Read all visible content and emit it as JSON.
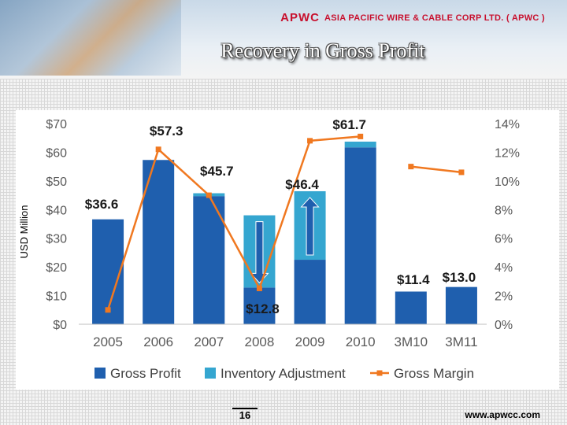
{
  "logo": {
    "mark": "APWC",
    "text": "ASIA PACIFIC WIRE & CABLE CORP LTD. ( APWC )"
  },
  "slide": {
    "title": "Recovery in Gross Profit",
    "page_number": "16",
    "url": "www.apwcc.com"
  },
  "colors": {
    "gross_profit": "#1f5fae",
    "inventory": "#35a6d0",
    "margin": "#f07820"
  },
  "chart_data": {
    "type": "bar",
    "stacked": true,
    "categories": [
      "2005",
      "2006",
      "2007",
      "2008",
      "2009",
      "2010",
      "3M10",
      "3M11"
    ],
    "series": [
      {
        "name": "Gross Profit",
        "values": [
          36.6,
          57.3,
          44.7,
          12.8,
          22.5,
          61.7,
          11.4,
          13.0
        ]
      },
      {
        "name": "Inventory Adjustment",
        "values": [
          0,
          0,
          1.0,
          25.2,
          23.9,
          2.0,
          0,
          0
        ]
      }
    ],
    "line_series": {
      "name": "Gross Margin",
      "axis": "right",
      "values": [
        1.0,
        12.2,
        9.0,
        2.5,
        12.8,
        13.1,
        11.0,
        10.6
      ]
    },
    "data_labels": [
      {
        "category": "2005",
        "text": "$36.6"
      },
      {
        "category": "2006",
        "text": "$57.3"
      },
      {
        "category": "2007",
        "text": "$45.7"
      },
      {
        "category": "2008",
        "text": "$12.8"
      },
      {
        "category": "2009",
        "text": "$46.4"
      },
      {
        "category": "2010",
        "text": "$61.7"
      },
      {
        "category": "3M10",
        "text": "$11.4"
      },
      {
        "category": "3M11",
        "text": "$13.0"
      }
    ],
    "arrows": [
      {
        "category": "2008",
        "direction": "down"
      },
      {
        "category": "2009",
        "direction": "up"
      }
    ],
    "ylabel": "USD Million",
    "ylim": [
      0,
      70
    ],
    "yticks": [
      "$0",
      "$10",
      "$20",
      "$30",
      "$40",
      "$50",
      "$60",
      "$70"
    ],
    "y2lim": [
      0,
      14
    ],
    "y2ticks": [
      "0%",
      "2%",
      "4%",
      "6%",
      "8%",
      "10%",
      "12%",
      "14%"
    ],
    "legend_position": "bottom"
  }
}
